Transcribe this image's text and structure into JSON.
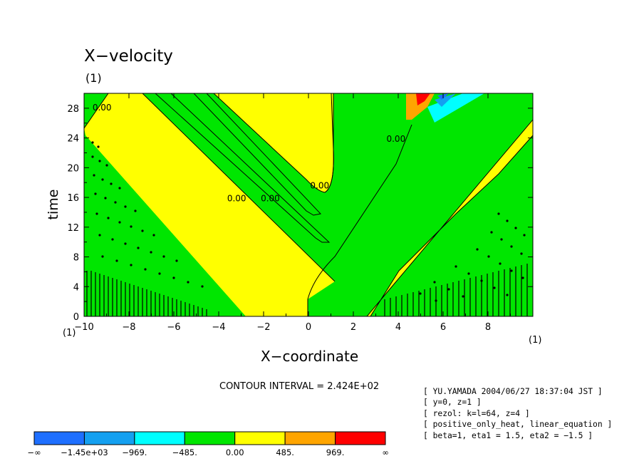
{
  "header": {
    "title": "X−velocity",
    "unit_top": "(1)"
  },
  "axes": {
    "xlabel": "X−coordinate",
    "ylabel": "time",
    "x_unit_left": "(1)",
    "x_unit_right": "(1)"
  },
  "contour_interval": "CONTOUR INTERVAL = 2.424E+02",
  "info_lines": [
    "[ YU.YAMADA 2004/06/27 18:37:04 JST ]",
    "[ y=0, z=1 ]",
    "[ rezol: k=l=64, z=4 ]",
    "[ positive_only_heat, linear_equation ]",
    "[ beta=1, eta1 = 1.5, eta2 = −1.5 ]"
  ],
  "colorbar": {
    "colors": [
      "#1e6fff",
      "#14a0f0",
      "#00ffff",
      "#00e600",
      "#ffff00",
      "#ffa500",
      "#ff0000"
    ],
    "labels": [
      "−∞",
      "−1.45e+03",
      "−969.",
      "−485.",
      "0.00",
      "485.",
      "969.",
      "∞"
    ]
  },
  "chart_data": {
    "type": "heatmap",
    "title": "X−velocity",
    "xlabel": "X−coordinate",
    "ylabel": "time",
    "xlim": [
      -10,
      10
    ],
    "ylim": [
      0,
      30
    ],
    "x_ticks": [
      -10,
      -8,
      -6,
      -4,
      -2,
      0,
      2,
      4,
      6,
      8
    ],
    "y_ticks": [
      0,
      4,
      8,
      12,
      16,
      20,
      24,
      28
    ],
    "contour_labels": [
      {
        "text": "0.00",
        "x": 0.5,
        "y": 17.2
      },
      {
        "text": "0.00",
        "x": -1.7,
        "y": 15.5
      },
      {
        "text": "0.00",
        "x": -3.2,
        "y": 15.5
      },
      {
        "text": "0.00",
        "x": 3.9,
        "y": 23.5
      },
      {
        "text": "0.00",
        "x": -9.2,
        "y": 27.7
      }
    ]
  }
}
